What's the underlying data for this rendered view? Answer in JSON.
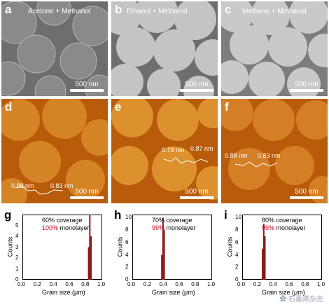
{
  "sem_panels": [
    {
      "label": "a",
      "title": "Acetone + Methanol",
      "scale": "500 nm"
    },
    {
      "label": "b",
      "title": "Ethanol + Methanol",
      "scale": "500 nm"
    },
    {
      "label": "c",
      "title": "Methane + Methanol",
      "scale": "500 nm"
    }
  ],
  "afm_panels": [
    {
      "label": "d",
      "scale": "500 nm",
      "heights": [
        "0.88 nm",
        "0.83 nm"
      ]
    },
    {
      "label": "e",
      "scale": "500 nm",
      "heights": [
        "0.79 nm",
        "0.87 nm"
      ]
    },
    {
      "label": "f",
      "scale": "500 nm",
      "heights": [
        "0.88 nm",
        "0.83 nm"
      ]
    }
  ],
  "colors": {
    "histogram_bar": "#8b1a1a",
    "highlight_text": "#d0021b",
    "afm_base": "#b85b0a",
    "sem_base": "#6e6e6e"
  },
  "chart_data": [
    {
      "type": "bar",
      "label": "g",
      "xlabel": "Grain size (μm)",
      "ylabel": "Counts",
      "xlim": [
        0.0,
        1.0
      ],
      "ylim": [
        0,
        6
      ],
      "xticks": [
        "0.0",
        "0.2",
        "0.4",
        "0.6",
        "0.8",
        "1.0"
      ],
      "yticks": [
        "0",
        "1",
        "2",
        "3",
        "4",
        "5"
      ],
      "legend": {
        "coverage": "60% coverage",
        "mono_value": "100%",
        "mono_text": " monolayer"
      },
      "bars": [
        {
          "x": 0.83,
          "value": 3
        },
        {
          "x": 0.845,
          "value": 6
        },
        {
          "x": 0.86,
          "value": 4
        }
      ]
    },
    {
      "type": "bar",
      "label": "h",
      "xlabel": "Grain size (μm)",
      "ylabel": "Counts",
      "xlim": [
        0.0,
        1.0
      ],
      "ylim": [
        0,
        10.5
      ],
      "xticks": [
        "0.0",
        "0.2",
        "0.4",
        "0.6",
        "0.8",
        "1.0"
      ],
      "yticks": [
        "0",
        "2",
        "4",
        "6",
        "8",
        "10"
      ],
      "legend": {
        "coverage": "70% coverage",
        "mono_value": "99%",
        "mono_text": " monolayer"
      },
      "bars": [
        {
          "x": 0.37,
          "value": 4
        },
        {
          "x": 0.385,
          "value": 10
        },
        {
          "x": 0.4,
          "value": 8
        }
      ]
    },
    {
      "type": "bar",
      "label": "i",
      "xlabel": "Grain size (μm)",
      "ylabel": "Counts",
      "xlim": [
        0.0,
        1.0
      ],
      "ylim": [
        0,
        10.5
      ],
      "xticks": [
        "0.0",
        "0.2",
        "0.4",
        "0.6",
        "0.8",
        "1.0"
      ],
      "yticks": [
        "0",
        "2",
        "4",
        "6",
        "8",
        "10"
      ],
      "legend": {
        "coverage": "80% coverage",
        "mono_value": "99%",
        "mono_text": " monolayer"
      },
      "bars": [
        {
          "x": 0.255,
          "value": 5
        },
        {
          "x": 0.27,
          "value": 9
        },
        {
          "x": 0.285,
          "value": 7
        }
      ]
    }
  ],
  "watermark": "✿ 石墨烯杂志"
}
